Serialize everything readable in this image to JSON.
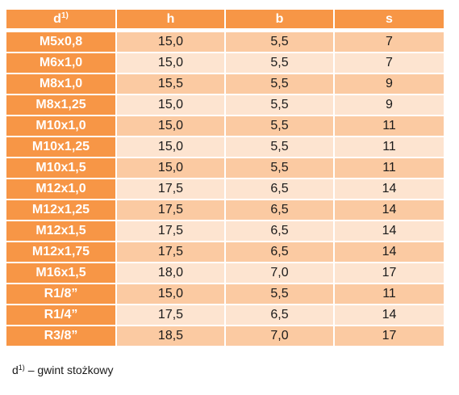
{
  "header": {
    "d": "d",
    "d_sup": "1)",
    "h": "h",
    "b": "b",
    "s": "s"
  },
  "rows": [
    {
      "d": "M5x0,8",
      "h": "15,0",
      "b": "5,5",
      "s": "7"
    },
    {
      "d": "M6x1,0",
      "h": "15,0",
      "b": "5,5",
      "s": "7"
    },
    {
      "d": "M8x1,0",
      "h": "15,5",
      "b": "5,5",
      "s": "9"
    },
    {
      "d": "M8x1,25",
      "h": "15,0",
      "b": "5,5",
      "s": "9"
    },
    {
      "d": "M10x1,0",
      "h": "15,0",
      "b": "5,5",
      "s": "11"
    },
    {
      "d": "M10x1,25",
      "h": "15,0",
      "b": "5,5",
      "s": "11"
    },
    {
      "d": "M10x1,5",
      "h": "15,0",
      "b": "5,5",
      "s": "11"
    },
    {
      "d": "M12x1,0",
      "h": "17,5",
      "b": "6,5",
      "s": "14"
    },
    {
      "d": "M12x1,25",
      "h": "17,5",
      "b": "6,5",
      "s": "14"
    },
    {
      "d": "M12x1,5",
      "h": "17,5",
      "b": "6,5",
      "s": "14"
    },
    {
      "d": "M12x1,75",
      "h": "17,5",
      "b": "6,5",
      "s": "14"
    },
    {
      "d": "M16x1,5",
      "h": "18,0",
      "b": "7,0",
      "s": "17"
    },
    {
      "d": "R1/8”",
      "h": "15,0",
      "b": "5,5",
      "s": "11"
    },
    {
      "d": "R1/4”",
      "h": "17,5",
      "b": "6,5",
      "s": "14"
    },
    {
      "d": "R3/8”",
      "h": "18,5",
      "b": "7,0",
      "s": "17"
    }
  ],
  "footnote": {
    "d": "d",
    "sup": "1)",
    "text": " – gwint stożkowy"
  },
  "colors": {
    "header_bg": "#f79646",
    "row_dark": "#fbcaa2",
    "row_light": "#fde4d0"
  }
}
